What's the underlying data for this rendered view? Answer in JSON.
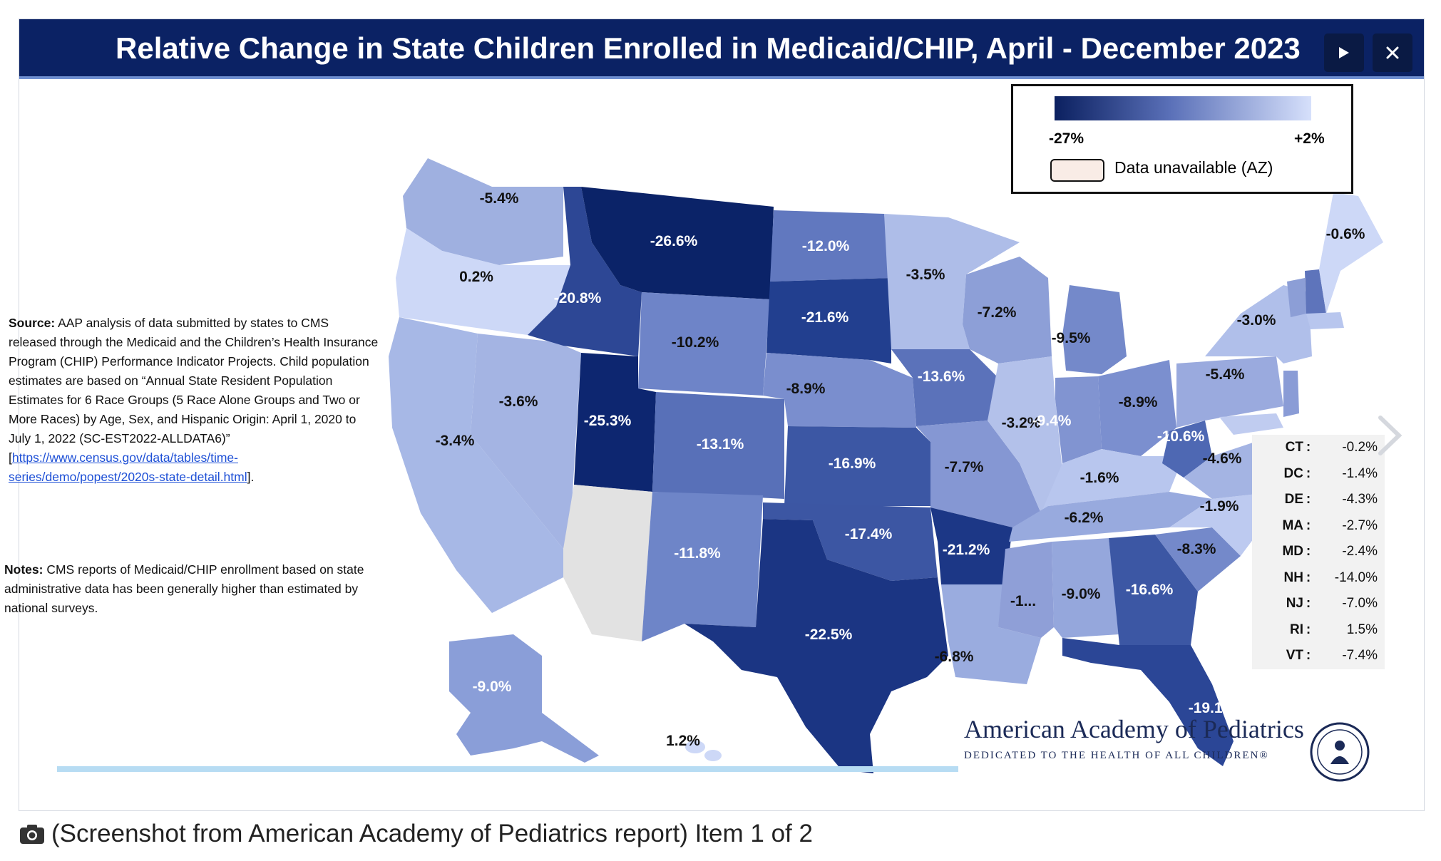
{
  "title": "Relative Change in State Children Enrolled in Medicaid/CHIP, April - December 2023",
  "controls": {
    "next_icon": "play-icon",
    "close_icon": "close-icon"
  },
  "legend": {
    "min_label": "-27%",
    "max_label": "+2%",
    "unavailable_label": "Data unavailable (AZ)",
    "color_low": "#0b2060",
    "color_high": "#d6e0fb",
    "unavailable_color": "#f9ece6"
  },
  "source": {
    "lead": "Source:",
    "text": "AAP analysis of data submitted by states to CMS released through the Medicaid and the Children’s Health Insurance Program (CHIP) Performance Indicator Projects. Child population estimates are based on “Annual State Resident Population Estimates for 6 Race Groups (5 Race Alone Groups and Two or More Races) by Age, Sex, and Hispanic Origin: April 1, 2020 to July 1, 2022 (SC-EST2022-ALLDATA6)” [",
    "link": "https://www.census.gov/data/tables/time-series/demo/popest/2020s-state-detail.html",
    "end": "]."
  },
  "notes": {
    "lead": "Notes:",
    "text": "CMS reports of Medicaid/CHIP enrollment based on state administrative data has been generally higher than estimated by national surveys."
  },
  "state_values": [
    {
      "label": "-5.4%"
    },
    {
      "label": "0.2%"
    },
    {
      "label": "-3.4%"
    },
    {
      "label": "-3.6%"
    },
    {
      "label": "-20.8%"
    },
    {
      "label": "-26.6%"
    },
    {
      "label": "-12.0%"
    },
    {
      "label": "-21.6%"
    },
    {
      "label": "-10.2%"
    },
    {
      "label": "-8.9%"
    },
    {
      "label": "-25.3%"
    },
    {
      "label": "-13.1%"
    },
    {
      "label": "-16.9%"
    },
    {
      "label": "-11.8%"
    },
    {
      "label": "-17.4%"
    },
    {
      "label": "-22.5%"
    },
    {
      "label": "-3.5%"
    },
    {
      "label": "-13.6%"
    },
    {
      "label": "-7.7%"
    },
    {
      "label": "-21.2%"
    },
    {
      "label": "-6.8%"
    },
    {
      "label": "-7.2%"
    },
    {
      "label": "-3.2%"
    },
    {
      "label": "-9.5%"
    },
    {
      "label": "-9.4%"
    },
    {
      "label": "-8.9%"
    },
    {
      "label": "-1.6%"
    },
    {
      "label": "-6.2%"
    },
    {
      "label": "-1..."
    },
    {
      "label": "-9.0%"
    },
    {
      "label": "-16.6%"
    },
    {
      "label": "-19.1%"
    },
    {
      "label": "-8.3%"
    },
    {
      "label": "-1.9%"
    },
    {
      "label": "-4.6%"
    },
    {
      "label": "-10.6%"
    },
    {
      "label": "-5.4%"
    },
    {
      "label": "-3.0%"
    },
    {
      "label": "-0.6%"
    },
    {
      "label": "-9.0%"
    },
    {
      "label": "1.2%"
    }
  ],
  "northeast_table": [
    {
      "state": "CT",
      "value": "-0.2%"
    },
    {
      "state": "DC",
      "value": "-1.4%"
    },
    {
      "state": "DE",
      "value": "-4.3%"
    },
    {
      "state": "MA",
      "value": "-2.7%"
    },
    {
      "state": "MD",
      "value": "-2.4%"
    },
    {
      "state": "NH",
      "value": "-14.0%"
    },
    {
      "state": "NJ",
      "value": "-7.0%"
    },
    {
      "state": "RI",
      "value": "1.5%"
    },
    {
      "state": "VT",
      "value": "-7.4%"
    }
  ],
  "org": {
    "name": "American Academy of Pediatrics",
    "tagline": "DEDICATED TO THE HEALTH OF ALL CHILDREN®"
  },
  "caption": {
    "icon": "camera-icon",
    "text": "(Screenshot from American Academy of Pediatrics report) Item 1 of 2"
  }
}
